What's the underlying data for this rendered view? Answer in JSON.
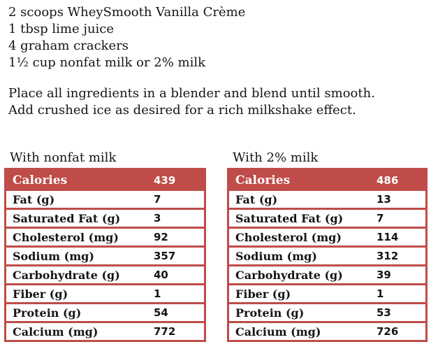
{
  "colors": {
    "accent_red": "#BF4C49",
    "header_text": "#FFFFFF",
    "body_text": "#151515"
  },
  "recipe": {
    "ingredients": [
      "2 scoops WheySmooth Vanilla Crème",
      "1 tbsp lime juice",
      "4 graham crackers",
      "1½ cup nonfat milk or 2% milk"
    ],
    "instructions": [
      "Place all ingredients in a blender and blend until smooth.",
      "Add crushed ice as desired for a rich milkshake effect."
    ]
  },
  "tables": [
    {
      "caption": "With nonfat milk",
      "header": {
        "label": "Calories",
        "value": "439"
      },
      "rows": [
        {
          "label": "Fat (g)",
          "value": "7"
        },
        {
          "label": "Saturated Fat (g)",
          "value": "3"
        },
        {
          "label": "Cholesterol (mg)",
          "value": "92"
        },
        {
          "label": "Sodium (mg)",
          "value": "357"
        },
        {
          "label": "Carbohydrate (g)",
          "value": "40"
        },
        {
          "label": "Fiber (g)",
          "value": "1"
        },
        {
          "label": "Protein (g)",
          "value": "54"
        },
        {
          "label": "Calcium (mg)",
          "value": "772"
        }
      ]
    },
    {
      "caption": "With 2% milk",
      "header": {
        "label": "Calories",
        "value": "486"
      },
      "rows": [
        {
          "label": "Fat (g)",
          "value": "13"
        },
        {
          "label": "Saturated Fat (g)",
          "value": "7"
        },
        {
          "label": "Cholesterol (mg)",
          "value": "114"
        },
        {
          "label": "Sodium (mg)",
          "value": "312"
        },
        {
          "label": "Carbohydrate (g)",
          "value": "39"
        },
        {
          "label": "Fiber (g)",
          "value": "1"
        },
        {
          "label": "Protein (g)",
          "value": "53"
        },
        {
          "label": "Calcium (mg)",
          "value": "726"
        }
      ]
    }
  ]
}
